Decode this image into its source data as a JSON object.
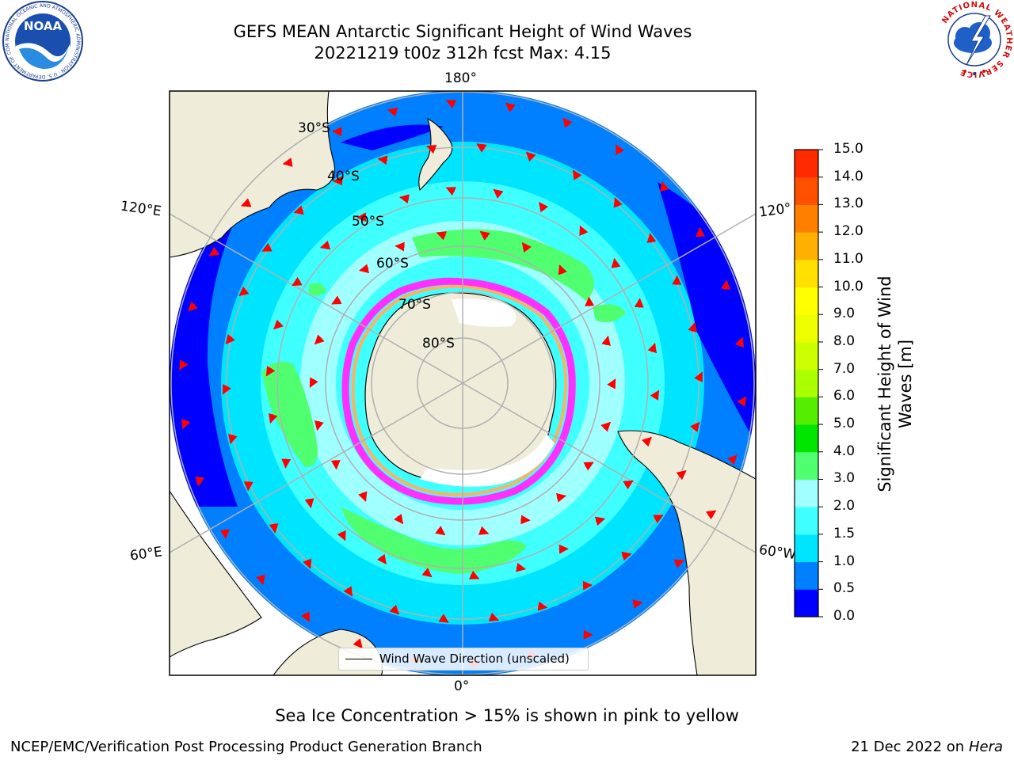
{
  "header": {
    "title_line1": "GEFS MEAN Antarctic Significant Height of Wind Waves",
    "title_line2": "20221219 t00z 312h fcst   Max: 4.15"
  },
  "logos": {
    "noaa_text": "NOAA",
    "noaa_ring_text": "NATIONAL OCEANIC AND ATMOSPHERIC ADMINISTRATION · U.S. DEPARTMENT OF COMMERCE",
    "nws_ring_text": "NATIONAL WEATHER SERVICE"
  },
  "map": {
    "longitude_labels": {
      "top": "180°",
      "bottom": "0°",
      "upper_left": "120°E",
      "lower_left": "60°E",
      "upper_right": "120°",
      "lower_right": "60°W"
    },
    "latitude_labels": [
      "30°S",
      "40°S",
      "50°S",
      "60°S",
      "70°S",
      "80°S"
    ],
    "legend_label": "Wind Wave Direction (unscaled)",
    "colors": {
      "land": "#efedda",
      "ice": "#ffffff",
      "arrows": "#ff0000",
      "grid": "#b0b0b0"
    }
  },
  "colorbar": {
    "title": "Significant Height of Wind Waves [m]",
    "ticks": [
      "0.0",
      "0.5",
      "1.0",
      "1.5",
      "2.0",
      "3.0",
      "4.0",
      "5.0",
      "6.0",
      "7.0",
      "8.0",
      "9.0",
      "10.0",
      "11.0",
      "12.0",
      "13.0",
      "14.0",
      "15.0"
    ],
    "colors": [
      "#0000ff",
      "#0080ff",
      "#00e5ff",
      "#40ffff",
      "#a0ffff",
      "#50ff70",
      "#00e600",
      "#55ee00",
      "#aaff00",
      "#ccff00",
      "#eeff00",
      "#ffff00",
      "#ffe000",
      "#ffb000",
      "#ff8000",
      "#ff5000",
      "#ff2a00"
    ]
  },
  "footer": {
    "note": "Sea Ice Concentration > 15% is shown in pink to yellow",
    "credit": "NCEP/EMC/Verification Post Processing Product Generation Branch",
    "date": "21 Dec 2022 on",
    "machine": "Hera"
  }
}
